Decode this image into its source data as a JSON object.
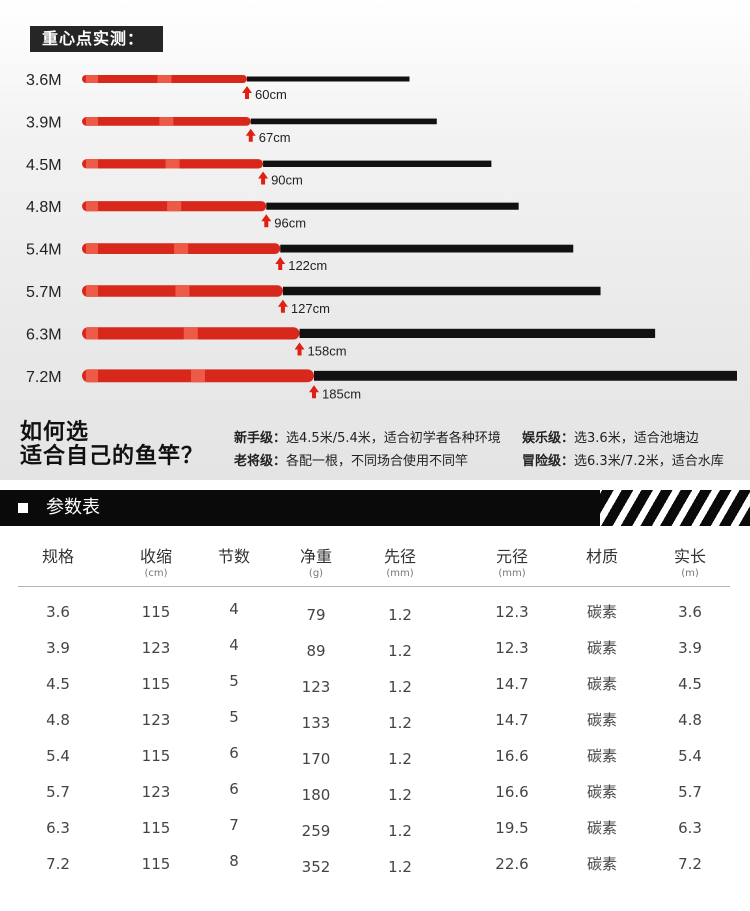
{
  "section_label": "重心点实测：",
  "chart_data": {
    "type": "bar",
    "categories": [
      "3.6M",
      "3.9M",
      "4.5M",
      "4.8M",
      "5.4M",
      "5.7M",
      "6.3M",
      "7.2M"
    ],
    "balance_point_labels": [
      "60cm",
      "67cm",
      "90cm",
      "96cm",
      "122cm",
      "127cm",
      "158cm",
      "185cm"
    ],
    "rod_length_m": [
      3.6,
      3.9,
      4.5,
      4.8,
      5.4,
      5.7,
      6.3,
      7.2
    ],
    "balance_point_cm": [
      60,
      67,
      90,
      96,
      122,
      127,
      158,
      185
    ],
    "colors": {
      "handle": "#d8281c",
      "handle_light": "#ee5a48",
      "blank": "#111111",
      "arrow": "#e02010"
    }
  },
  "guide": {
    "title_line1": "如何选",
    "title_line2": "适合自己的鱼竿？",
    "items": [
      {
        "level": "新手级：",
        "desc": "选4.5米/5.4米，适合初学者各种环境"
      },
      {
        "level": "老将级：",
        "desc": "各配一根，不同场合使用不同竿"
      },
      {
        "level": "娱乐级：",
        "desc": "选3.6米，适合池塘边"
      },
      {
        "level": "冒险级：",
        "desc": "选6.3米/7.2米，适合水库"
      }
    ]
  },
  "params": {
    "title": "参数表",
    "columns": [
      {
        "name": "规格",
        "unit": ""
      },
      {
        "name": "收缩",
        "unit": "(cm)"
      },
      {
        "name": "节数",
        "unit": ""
      },
      {
        "name": "净重",
        "unit": "(g)"
      },
      {
        "name": "先径",
        "unit": "(mm)"
      },
      {
        "name": "元径",
        "unit": "(mm)"
      },
      {
        "name": "材质",
        "unit": ""
      },
      {
        "name": "实长",
        "unit": "(m)"
      }
    ],
    "rows": [
      [
        "3.6",
        "115",
        "4",
        "79",
        "1.2",
        "12.3",
        "碳素",
        "3.6"
      ],
      [
        "3.9",
        "123",
        "4",
        "89",
        "1.2",
        "12.3",
        "碳素",
        "3.9"
      ],
      [
        "4.5",
        "115",
        "5",
        "123",
        "1.2",
        "14.7",
        "碳素",
        "4.5"
      ],
      [
        "4.8",
        "123",
        "5",
        "133",
        "1.2",
        "14.7",
        "碳素",
        "4.8"
      ],
      [
        "5.4",
        "115",
        "6",
        "170",
        "1.2",
        "16.6",
        "碳素",
        "5.4"
      ],
      [
        "5.7",
        "123",
        "6",
        "180",
        "1.2",
        "16.6",
        "碳素",
        "5.7"
      ],
      [
        "6.3",
        "115",
        "7",
        "259",
        "1.2",
        "19.5",
        "碳素",
        "6.3"
      ],
      [
        "7.2",
        "115",
        "8",
        "352",
        "1.2",
        "22.6",
        "碳素",
        "7.2"
      ]
    ]
  }
}
